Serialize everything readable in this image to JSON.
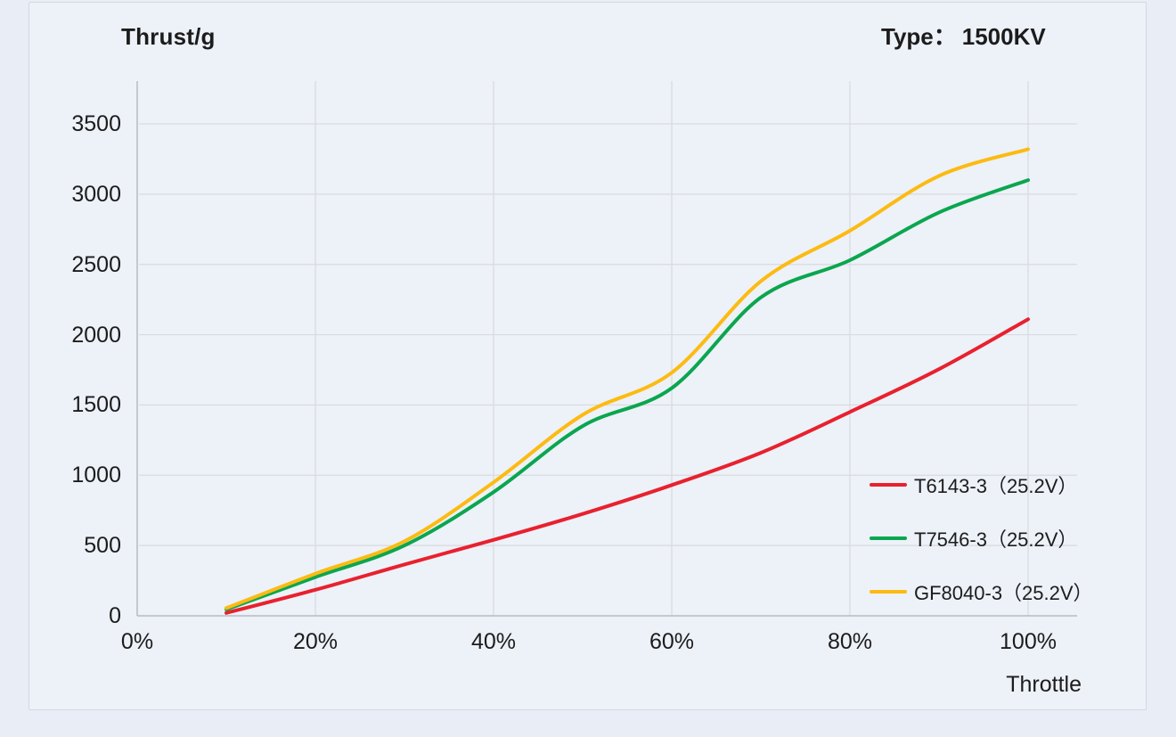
{
  "header": {
    "title": "Thrust/g",
    "type_label": "Type：",
    "type_value": "1500KV"
  },
  "chart_data": {
    "type": "line",
    "title": "Thrust/g",
    "subtitle": "Type：1500KV",
    "xlabel": "Throttle",
    "ylabel": "Thrust/g",
    "x_unit": "percent throttle",
    "y_unit": "g",
    "x": [
      10,
      20,
      30,
      40,
      50,
      60,
      70,
      80,
      90,
      100
    ],
    "series": [
      {
        "name": "T6143-3（25.2V）",
        "color": "#e8212e",
        "values": [
          20,
          185,
          365,
          540,
          725,
          930,
          1160,
          1450,
          1755,
          2110
        ]
      },
      {
        "name": "T7546-3（25.2V）",
        "color": "#0aa64f",
        "values": [
          45,
          275,
          500,
          880,
          1350,
          1620,
          2265,
          2530,
          2870,
          3100
        ]
      },
      {
        "name": "GF8040-3（25.2V）",
        "color": "#fcbb12",
        "values": [
          55,
          300,
          530,
          950,
          1430,
          1730,
          2380,
          2740,
          3130,
          3320
        ]
      }
    ],
    "x_tick_values": [
      0,
      20,
      40,
      60,
      80,
      100
    ],
    "x_tick_labels": [
      "0%",
      "20%",
      "40%",
      "60%",
      "80%",
      "100%"
    ],
    "y_ticks": [
      0,
      500,
      1000,
      1500,
      2000,
      2500,
      3000,
      3500
    ],
    "xlim": [
      0,
      105.5
    ],
    "ylim": [
      0,
      3800
    ],
    "grid": true,
    "legend_position": "inside-right-bottom"
  },
  "colors": {
    "page_background": "#e8edf6",
    "card_background": "#edf1f8",
    "card_border": "#d3d8e1",
    "grid": "#d8dbde",
    "axis": "#b7bcc4",
    "text": "#1c1c1c"
  }
}
